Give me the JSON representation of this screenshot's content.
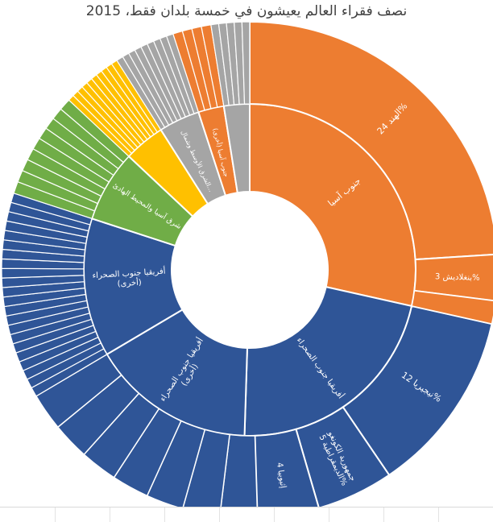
{
  "chart_data": {
    "type": "sunburst",
    "title": "نصف فقراء العالم يعيشون في خمسة بلدان فقط، 2015",
    "colors": {
      "south_asia": "#ED7D31",
      "ssa": "#2F5597",
      "east_asia": "#70AD47",
      "latam": "#FFC000",
      "mena": "#A5A5A5",
      "other": "#A5A5A5",
      "outline": "#FFFFFF"
    },
    "ring_inner": [
      {
        "key": "sa",
        "label": "جنوب آسيا",
        "color_key": "south_asia",
        "start": 0,
        "end": 28.5
      },
      {
        "key": "ssa1",
        "label": "أفريقيا جنوب الصحراء",
        "color_key": "ssa",
        "start": 28.5,
        "end": 50.5
      },
      {
        "key": "ssa2",
        "label": "أفريقيا جنوب الصحراء (أخرى)",
        "color_key": "ssa",
        "start": 50.5,
        "end": 66.5
      },
      {
        "key": "ssa3",
        "label": "أفريقيا جنوب الصحراء (أخرى)",
        "color_key": "ssa",
        "start": 66.5,
        "end": 80.0
      },
      {
        "key": "eap",
        "label": "شرق آسيا والمحيط الهادئ",
        "color_key": "east_asia",
        "start": 80.0,
        "end": 87.0
      },
      {
        "key": "lac",
        "label": "",
        "color_key": "latam",
        "start": 87.0,
        "end": 91.0
      },
      {
        "key": "mena",
        "label": "الشرق الأوسط وشمال...",
        "color_key": "mena",
        "start": 91.0,
        "end": 95.0
      },
      {
        "key": "sa_other",
        "label": "جنوب آسيا (أخرى)",
        "color_key": "south_asia",
        "start": 95.0,
        "end": 97.5
      },
      {
        "key": "other",
        "label": "",
        "color_key": "other",
        "start": 97.5,
        "end": 100.0
      }
    ],
    "ring_outer_labeled": [
      {
        "label": "الهند 24%",
        "value": 24.0,
        "color_key": "south_asia"
      },
      {
        "label": "بنغلاديش 3%",
        "value": 3.0,
        "color_key": "south_asia"
      },
      {
        "label": "نيجيريا 12%",
        "value": 12.0,
        "color_key": "ssa"
      },
      {
        "label": "جمهورية الكونغو الديمقراطية 5%",
        "value": 5.0,
        "color_key": "ssa"
      },
      {
        "label": "إثيوبيا 4",
        "value": 4.0,
        "color_key": "ssa"
      }
    ]
  }
}
